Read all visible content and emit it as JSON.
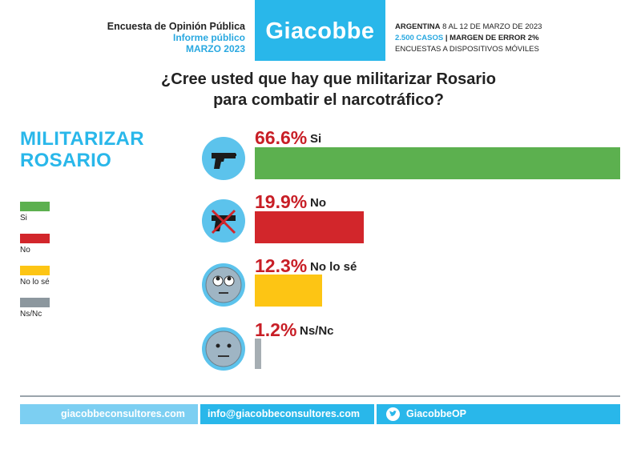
{
  "header": {
    "survey_title": "Encuesta de Opinión Pública",
    "report_type": "Informe público",
    "period": "MARZO 2023",
    "brand": "Giacobbe",
    "country": "ARGENTINA",
    "dates": "8 AL 12 DE MARZO DE 2023",
    "cases": "2.500 CASOS",
    "margin": "| MARGEN DE ERROR 2%",
    "method": "ENCUESTAS A DISPOSITIVOS MÓVILES"
  },
  "question": {
    "line1": "¿Cree usted que hay que militarizar Rosario",
    "line2": "para combatir el narcotráfico?"
  },
  "side_title": {
    "line1": "MILITARIZAR",
    "line2": "ROSARIO"
  },
  "legend": [
    {
      "label": "Si",
      "color": "#5cb04f"
    },
    {
      "label": "No",
      "color": "#d2262b"
    },
    {
      "label": "No lo sé",
      "color": "#fdc514"
    },
    {
      "label": "Ns/Nc",
      "color": "#8c979e"
    }
  ],
  "chart_data": {
    "type": "bar",
    "orientation": "horizontal",
    "categories": [
      "Si",
      "No",
      "No lo sé",
      "Ns/Nc"
    ],
    "values": [
      66.6,
      19.9,
      12.3,
      1.2
    ],
    "value_labels": [
      "66.6%",
      "19.9%",
      "12.3%",
      "1.2%"
    ],
    "colors": [
      "#5cb04f",
      "#d2262b",
      "#fdc514",
      "#a6aeb3"
    ],
    "icons": [
      "pistol-icon",
      "crossed-pistol-icon",
      "eyes-rolling-face-icon",
      "neutral-face-icon"
    ],
    "xlim": [
      0,
      66.6
    ],
    "title": "¿Cree usted que hay que militarizar Rosario para combatir el narcotráfico?"
  },
  "footer": {
    "website": "giacobbeconsultores.com",
    "email": "info@giacobbeconsultores.com",
    "twitter": "GiacobbeOP"
  }
}
